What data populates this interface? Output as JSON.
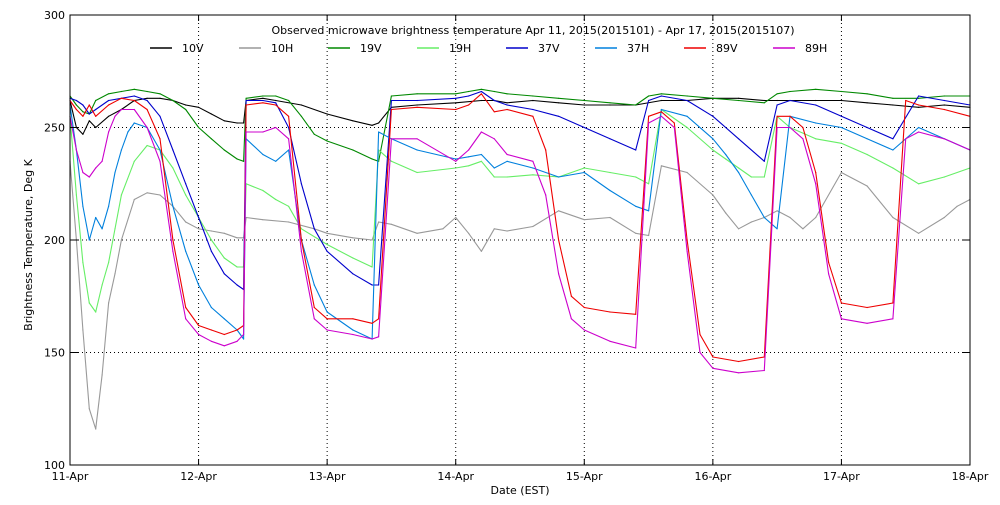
{
  "chart_data": {
    "type": "line",
    "title": "Observed microwave brightness temperature Apr 11, 2015(2015101) - Apr 17, 2015(2015107)",
    "xlabel": "Date (EST)",
    "ylabel": "Brightness Temperature, Deg K",
    "xlim": [
      0,
      7
    ],
    "ylim": [
      100,
      300
    ],
    "grid": true,
    "legend_position": "top",
    "x_ticks": [
      {
        "value": 0,
        "label": "11-Apr"
      },
      {
        "value": 1,
        "label": "12-Apr"
      },
      {
        "value": 2,
        "label": "13-Apr"
      },
      {
        "value": 3,
        "label": "14-Apr"
      },
      {
        "value": 4,
        "label": "15-Apr"
      },
      {
        "value": 5,
        "label": "16-Apr"
      },
      {
        "value": 6,
        "label": "17-Apr"
      },
      {
        "value": 7,
        "label": "18-Apr"
      }
    ],
    "y_ticks": [
      {
        "value": 100,
        "label": "100"
      },
      {
        "value": 150,
        "label": "150"
      },
      {
        "value": 200,
        "label": "200"
      },
      {
        "value": 250,
        "label": "250"
      },
      {
        "value": 300,
        "label": "300"
      }
    ],
    "series": [
      {
        "name": "10V",
        "color": "#000000",
        "x": [
          0,
          0.05,
          0.1,
          0.15,
          0.2,
          0.3,
          0.4,
          0.5,
          0.6,
          0.7,
          0.8,
          0.9,
          1,
          1.1,
          1.2,
          1.3,
          1.35,
          1.37,
          1.5,
          1.6,
          1.8,
          2,
          2.2,
          2.35,
          2.4,
          2.5,
          2.7,
          3,
          3.2,
          3.3,
          3.4,
          3.6,
          3.8,
          4,
          4.2,
          4.4,
          4.6,
          4.8,
          5,
          5.2,
          5.4,
          5.5,
          5.6,
          5.8,
          6,
          6.2,
          6.4,
          6.6,
          6.8,
          7
        ],
        "values": [
          262,
          250,
          247,
          253,
          250,
          255,
          258,
          262,
          263,
          263,
          262,
          260,
          259,
          256,
          253,
          252,
          252,
          262,
          263,
          262,
          260,
          256,
          253,
          251,
          252,
          259,
          260,
          261,
          262,
          262,
          261,
          262,
          261,
          260,
          260,
          260,
          262,
          262,
          263,
          263,
          262,
          262,
          262,
          262,
          262,
          261,
          260,
          259,
          260,
          259
        ]
      },
      {
        "name": "10H",
        "color": "#999999",
        "x": [
          0,
          0.05,
          0.1,
          0.15,
          0.2,
          0.25,
          0.3,
          0.35,
          0.4,
          0.5,
          0.6,
          0.7,
          0.8,
          0.9,
          1,
          1.1,
          1.2,
          1.3,
          1.35,
          1.37,
          1.5,
          1.7,
          1.9,
          2,
          2.2,
          2.35,
          2.4,
          2.5,
          2.7,
          2.9,
          3,
          3.1,
          3.2,
          3.3,
          3.4,
          3.6,
          3.8,
          4,
          4.2,
          4.4,
          4.5,
          4.6,
          4.8,
          5,
          5.1,
          5.2,
          5.3,
          5.4,
          5.5,
          5.6,
          5.7,
          5.8,
          6,
          6.2,
          6.4,
          6.6,
          6.8,
          6.9,
          7
        ],
        "values": [
          235,
          200,
          160,
          125,
          116,
          140,
          172,
          185,
          200,
          218,
          221,
          220,
          215,
          208,
          205,
          204,
          203,
          201,
          201,
          210,
          209,
          208,
          205,
          203,
          201,
          200,
          208,
          207,
          203,
          205,
          210,
          203,
          195,
          205,
          204,
          206,
          213,
          209,
          210,
          203,
          202,
          233,
          230,
          220,
          212,
          205,
          208,
          210,
          213,
          210,
          205,
          210,
          230,
          224,
          210,
          203,
          210,
          215,
          218
        ]
      },
      {
        "name": "19V",
        "color": "#008800",
        "x": [
          0,
          0.05,
          0.1,
          0.15,
          0.2,
          0.3,
          0.4,
          0.5,
          0.6,
          0.7,
          0.8,
          0.9,
          1,
          1.1,
          1.2,
          1.3,
          1.35,
          1.37,
          1.5,
          1.6,
          1.7,
          1.8,
          1.9,
          2,
          2.2,
          2.35,
          2.4,
          2.5,
          2.7,
          3,
          3.1,
          3.2,
          3.3,
          3.4,
          3.6,
          3.8,
          4,
          4.2,
          4.4,
          4.5,
          4.6,
          4.8,
          5,
          5.2,
          5.4,
          5.5,
          5.6,
          5.8,
          6,
          6.2,
          6.4,
          6.6,
          6.8,
          7
        ],
        "values": [
          264,
          260,
          257,
          256,
          262,
          265,
          266,
          267,
          266,
          265,
          262,
          258,
          250,
          245,
          240,
          236,
          235,
          263,
          264,
          264,
          262,
          255,
          247,
          244,
          240,
          236,
          235,
          264,
          265,
          265,
          266,
          267,
          266,
          265,
          264,
          263,
          262,
          261,
          260,
          264,
          265,
          264,
          263,
          262,
          261,
          265,
          266,
          267,
          266,
          265,
          263,
          263,
          264,
          264
        ]
      },
      {
        "name": "19H",
        "color": "#66ee66",
        "x": [
          0,
          0.05,
          0.1,
          0.15,
          0.2,
          0.25,
          0.3,
          0.35,
          0.4,
          0.5,
          0.6,
          0.7,
          0.8,
          0.9,
          1,
          1.1,
          1.2,
          1.3,
          1.35,
          1.37,
          1.5,
          1.6,
          1.7,
          1.8,
          2,
          2.2,
          2.35,
          2.4,
          2.5,
          2.7,
          3,
          3.1,
          3.2,
          3.3,
          3.4,
          3.6,
          3.8,
          4,
          4.2,
          4.4,
          4.5,
          4.6,
          4.8,
          5,
          5.1,
          5.2,
          5.3,
          5.4,
          5.5,
          5.6,
          5.8,
          6,
          6.2,
          6.4,
          6.6,
          6.8,
          7
        ],
        "values": [
          255,
          220,
          190,
          172,
          168,
          180,
          190,
          205,
          220,
          235,
          242,
          240,
          232,
          220,
          210,
          200,
          192,
          188,
          188,
          225,
          222,
          218,
          215,
          205,
          198,
          192,
          188,
          240,
          235,
          230,
          232,
          233,
          235,
          228,
          228,
          229,
          228,
          232,
          230,
          228,
          225,
          258,
          250,
          240,
          236,
          232,
          228,
          228,
          255,
          250,
          245,
          243,
          238,
          232,
          225,
          228,
          232
        ]
      },
      {
        "name": "37V",
        "color": "#0000cc",
        "x": [
          0,
          0.05,
          0.1,
          0.15,
          0.2,
          0.3,
          0.4,
          0.5,
          0.6,
          0.7,
          0.8,
          0.9,
          1,
          1.1,
          1.2,
          1.3,
          1.35,
          1.37,
          1.5,
          1.6,
          1.7,
          1.8,
          1.9,
          2,
          2.2,
          2.35,
          2.4,
          2.5,
          2.7,
          3,
          3.1,
          3.2,
          3.3,
          3.4,
          3.6,
          3.8,
          4,
          4.2,
          4.4,
          4.5,
          4.6,
          4.8,
          5,
          5.2,
          5.4,
          5.5,
          5.6,
          5.8,
          6,
          6.2,
          6.4,
          6.6,
          6.8,
          7
        ],
        "values": [
          263,
          262,
          260,
          256,
          258,
          262,
          263,
          264,
          262,
          255,
          240,
          225,
          210,
          195,
          185,
          180,
          178,
          262,
          262,
          261,
          250,
          225,
          205,
          195,
          185,
          180,
          180,
          262,
          262,
          263,
          264,
          266,
          262,
          260,
          258,
          255,
          250,
          245,
          240,
          262,
          264,
          262,
          255,
          245,
          235,
          260,
          262,
          260,
          255,
          250,
          245,
          264,
          262,
          260
        ]
      },
      {
        "name": "37H",
        "color": "#0080dd",
        "x": [
          0,
          0.05,
          0.1,
          0.15,
          0.2,
          0.25,
          0.3,
          0.35,
          0.4,
          0.45,
          0.5,
          0.6,
          0.7,
          0.8,
          0.9,
          1,
          1.1,
          1.2,
          1.3,
          1.35,
          1.37,
          1.5,
          1.6,
          1.7,
          1.8,
          1.9,
          2,
          2.2,
          2.35,
          2.4,
          2.5,
          2.7,
          3,
          3.1,
          3.2,
          3.3,
          3.4,
          3.6,
          3.8,
          4,
          4.2,
          4.4,
          4.5,
          4.6,
          4.8,
          5,
          5.1,
          5.2,
          5.3,
          5.4,
          5.5,
          5.6,
          5.8,
          6,
          6.2,
          6.4,
          6.6,
          6.8,
          7
        ],
        "values": [
          260,
          240,
          215,
          200,
          210,
          205,
          215,
          230,
          240,
          248,
          252,
          250,
          240,
          215,
          195,
          180,
          170,
          165,
          160,
          156,
          245,
          238,
          235,
          240,
          200,
          180,
          168,
          160,
          156,
          248,
          245,
          240,
          236,
          237,
          238,
          232,
          235,
          232,
          228,
          230,
          222,
          215,
          213,
          258,
          255,
          245,
          238,
          230,
          220,
          210,
          205,
          255,
          252,
          250,
          245,
          240,
          250,
          245,
          240
        ]
      },
      {
        "name": "89V",
        "color": "#ee0000",
        "x": [
          0,
          0.05,
          0.1,
          0.15,
          0.2,
          0.3,
          0.4,
          0.5,
          0.6,
          0.7,
          0.8,
          0.9,
          1,
          1.1,
          1.2,
          1.3,
          1.35,
          1.37,
          1.5,
          1.6,
          1.7,
          1.8,
          1.9,
          2,
          2.2,
          2.35,
          2.4,
          2.5,
          2.7,
          3,
          3.1,
          3.2,
          3.3,
          3.4,
          3.6,
          3.7,
          3.8,
          3.9,
          4,
          4.2,
          4.4,
          4.5,
          4.6,
          4.7,
          4.8,
          4.9,
          5,
          5.2,
          5.4,
          5.5,
          5.6,
          5.7,
          5.8,
          5.9,
          6,
          6.2,
          6.4,
          6.5,
          6.6,
          6.8,
          7
        ],
        "values": [
          262,
          258,
          255,
          260,
          255,
          260,
          263,
          262,
          258,
          245,
          200,
          170,
          162,
          160,
          158,
          160,
          162,
          260,
          261,
          260,
          255,
          200,
          170,
          165,
          165,
          163,
          165,
          258,
          259,
          258,
          260,
          265,
          257,
          258,
          255,
          240,
          200,
          175,
          170,
          168,
          167,
          255,
          257,
          252,
          200,
          158,
          148,
          146,
          148,
          255,
          255,
          250,
          230,
          190,
          172,
          170,
          172,
          262,
          260,
          258,
          255
        ]
      },
      {
        "name": "89H",
        "color": "#cc00cc",
        "x": [
          0,
          0.05,
          0.1,
          0.15,
          0.2,
          0.25,
          0.3,
          0.35,
          0.4,
          0.5,
          0.6,
          0.7,
          0.8,
          0.9,
          1,
          1.1,
          1.2,
          1.3,
          1.35,
          1.37,
          1.5,
          1.6,
          1.7,
          1.8,
          1.9,
          2,
          2.2,
          2.35,
          2.4,
          2.5,
          2.7,
          3,
          3.1,
          3.2,
          3.3,
          3.4,
          3.6,
          3.7,
          3.8,
          3.9,
          4,
          4.2,
          4.4,
          4.5,
          4.6,
          4.7,
          4.8,
          4.9,
          5,
          5.2,
          5.4,
          5.5,
          5.6,
          5.7,
          5.8,
          5.9,
          6,
          6.2,
          6.4,
          6.5,
          6.6,
          6.8,
          7
        ],
        "values": [
          255,
          240,
          230,
          228,
          232,
          235,
          248,
          255,
          258,
          258,
          250,
          235,
          195,
          165,
          158,
          155,
          153,
          155,
          158,
          248,
          248,
          250,
          245,
          195,
          165,
          160,
          158,
          156,
          157,
          245,
          245,
          235,
          240,
          248,
          245,
          238,
          235,
          220,
          185,
          165,
          160,
          155,
          152,
          252,
          255,
          250,
          195,
          150,
          143,
          141,
          142,
          250,
          250,
          245,
          225,
          185,
          165,
          163,
          165,
          245,
          248,
          245,
          240
        ]
      }
    ]
  }
}
